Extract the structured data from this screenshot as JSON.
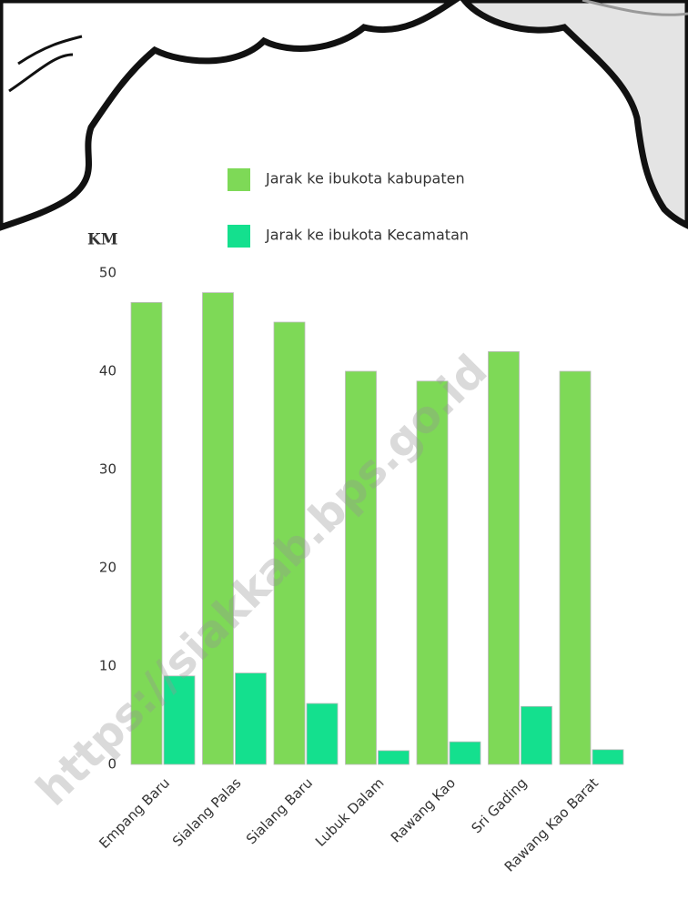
{
  "chart_data": {
    "type": "bar",
    "y_label": "KM",
    "categories": [
      "Empang Baru",
      "Sialang Palas",
      "Sialang Baru",
      "Lubuk Dalam",
      "Rawang Kao",
      "Sri Gading",
      "Rawang Kao Barat"
    ],
    "series": [
      {
        "name": "Jarak ke ibukota kabupaten",
        "color": "#7ed957",
        "values": [
          47,
          48,
          45,
          40,
          39,
          42,
          40
        ]
      },
      {
        "name": "Jarak ke ibukota Kecamatan",
        "color": "#14e08e",
        "values": [
          9,
          9.3,
          6.2,
          1.4,
          2.3,
          5.9,
          1.5
        ]
      }
    ],
    "ylim": [
      0,
      50
    ],
    "yticks": [
      0,
      10,
      20,
      30,
      40,
      50
    ],
    "grid": false
  },
  "watermark": "https://siakkab.bps.go.id"
}
